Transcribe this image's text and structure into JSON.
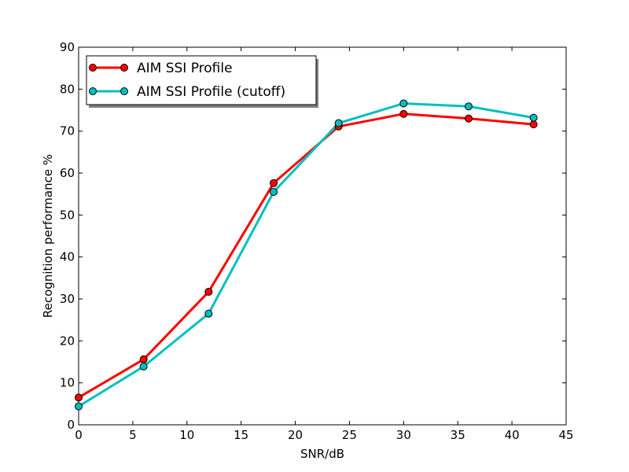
{
  "chart_data": {
    "type": "line",
    "title": "",
    "xlabel": "SNR/dB",
    "ylabel": "Recognition performance %",
    "xlim": [
      0,
      45
    ],
    "ylim": [
      0,
      90
    ],
    "xticks": [
      0,
      5,
      10,
      15,
      20,
      25,
      30,
      35,
      40,
      45
    ],
    "yticks": [
      0,
      10,
      20,
      30,
      40,
      50,
      60,
      70,
      80,
      90
    ],
    "grid": false,
    "legend_position": "top-left",
    "x": [
      0,
      6,
      12,
      18,
      24,
      30,
      36,
      42
    ],
    "series": [
      {
        "name": "AIM SSI Profile",
        "color": "#ff0000",
        "values": [
          6.5,
          15.6,
          31.7,
          57.6,
          71.1,
          74.1,
          73.0,
          71.6
        ]
      },
      {
        "name": "AIM SSI Profile (cutoff)",
        "color": "#00bfbf",
        "values": [
          4.4,
          13.9,
          26.5,
          55.5,
          71.9,
          76.6,
          75.9,
          73.2
        ]
      }
    ]
  }
}
